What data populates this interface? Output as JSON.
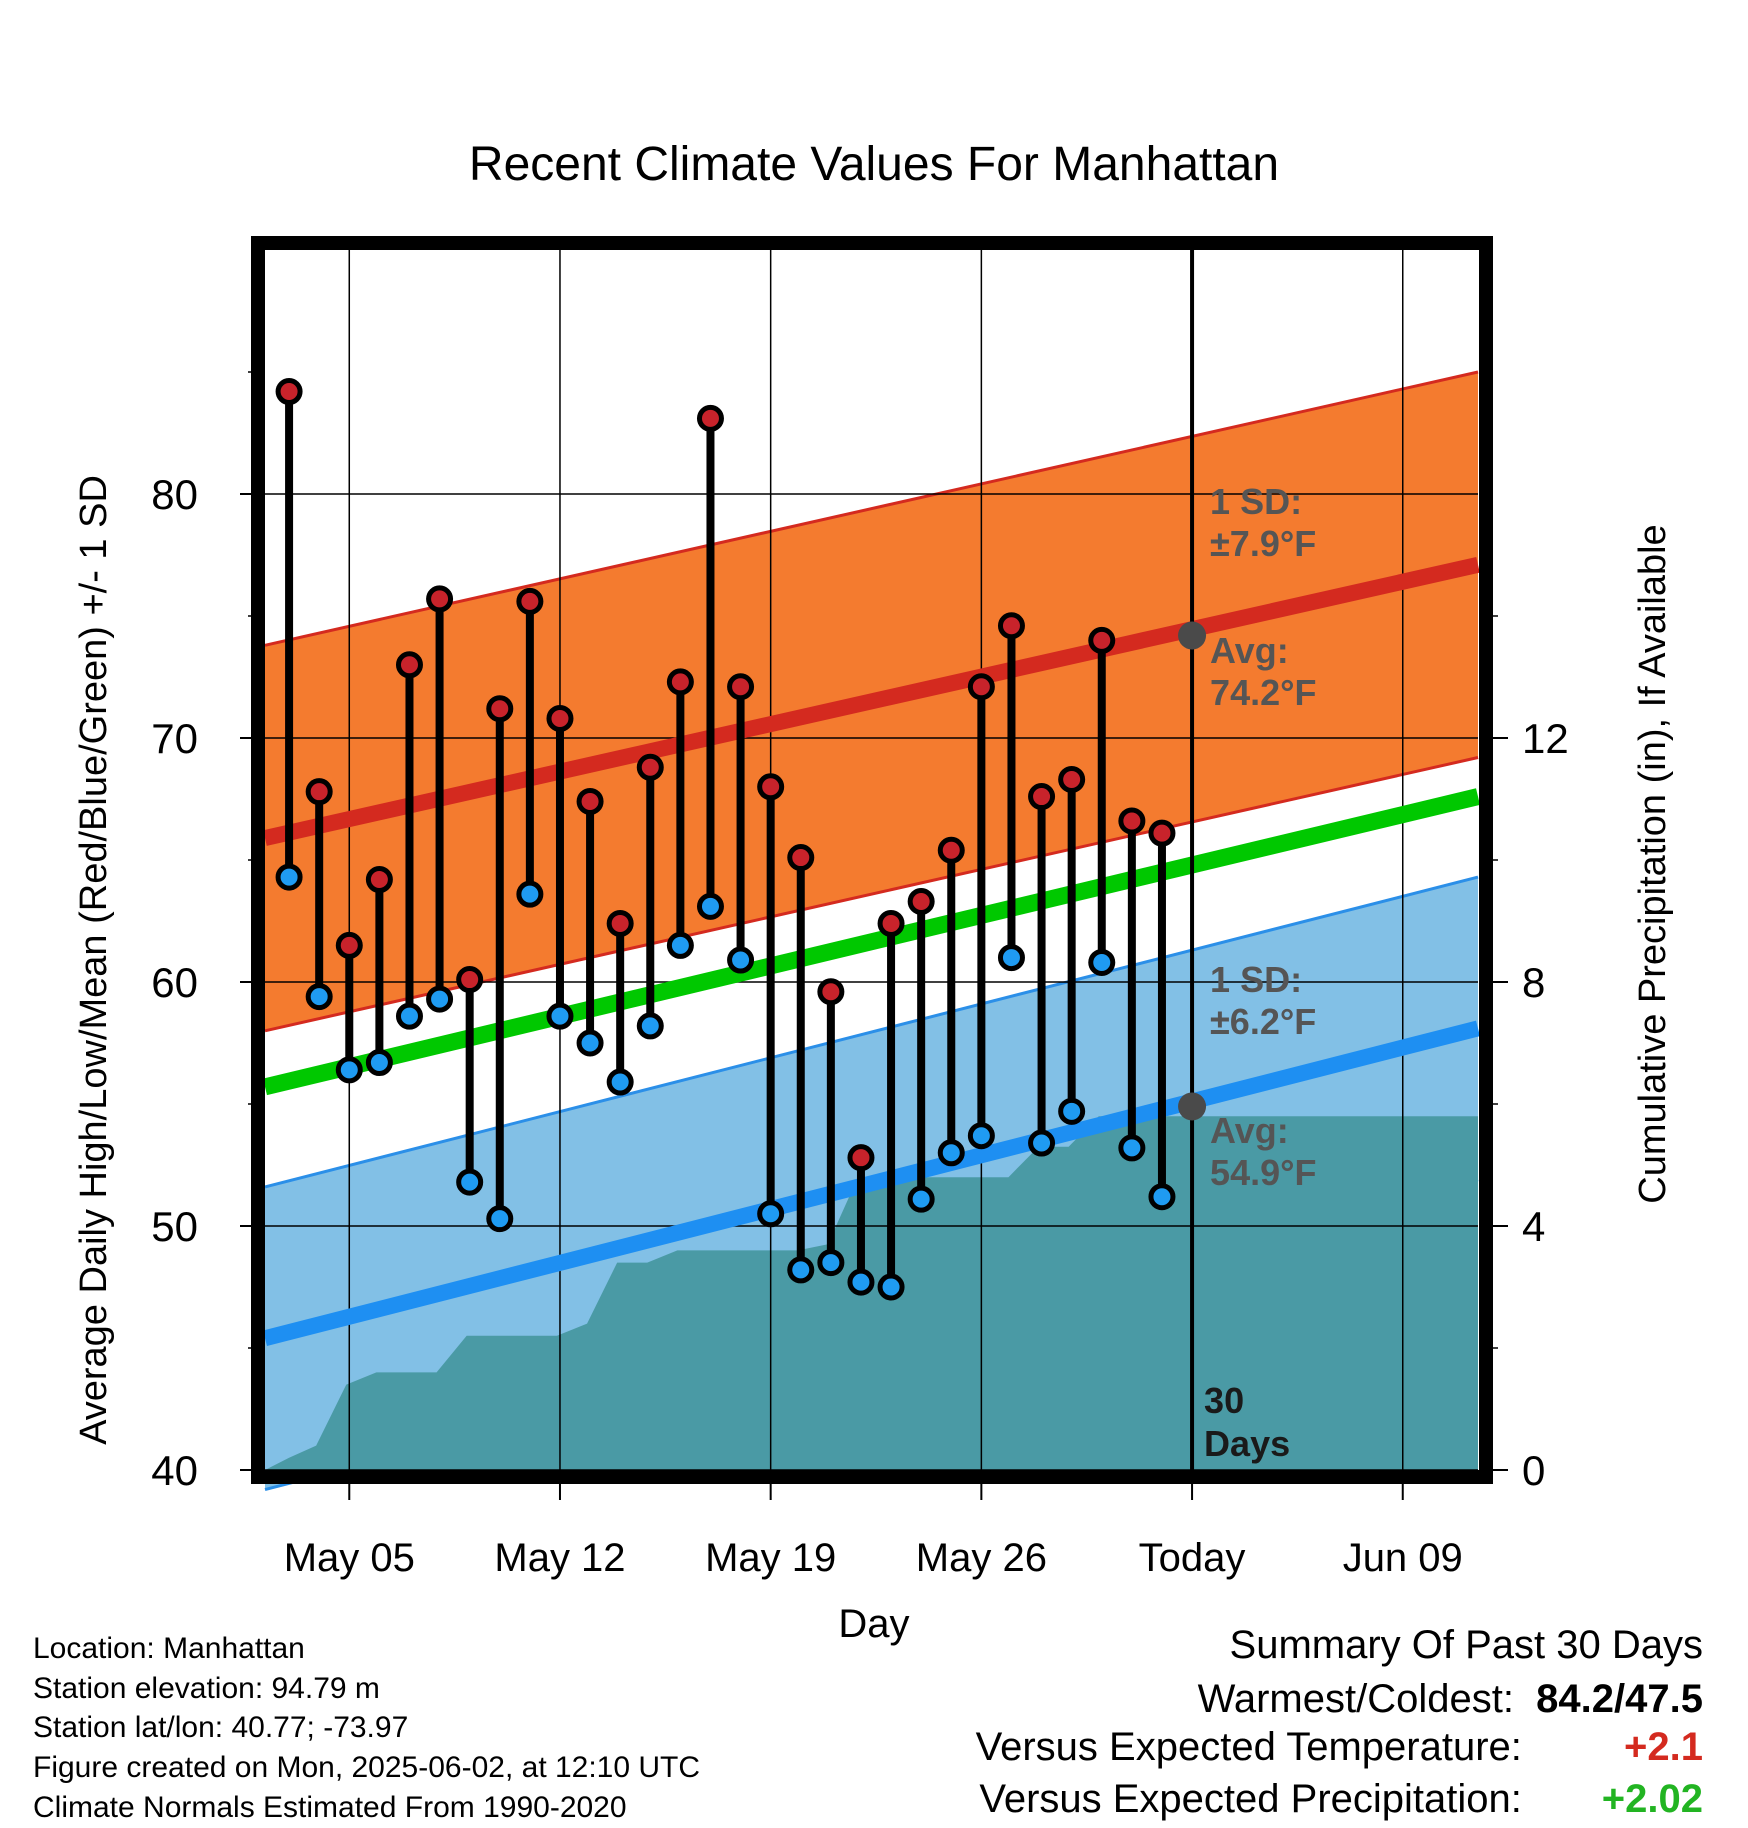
{
  "chart_data": {
    "type": "line",
    "title": "Recent Climate Values For Manhattan",
    "xlabel": "Day",
    "ylabel": "Average Daily High/Low/Mean (Red/Blue/Green) +/- 1 SD",
    "y2label": "Cumulative Precipitation (in), If Available",
    "ylim": [
      40,
      90
    ],
    "y2lim": [
      0,
      20
    ],
    "yticks": [
      40,
      50,
      60,
      70,
      80
    ],
    "y2ticks": [
      0,
      4,
      8,
      12
    ],
    "x_tick_labels": [
      "May 05",
      "May 12",
      "May 19",
      "May 26",
      "Today",
      "Jun 09"
    ],
    "x_tick_days": [
      3,
      10,
      17,
      24,
      31,
      38
    ],
    "xlim": [
      0.2,
      40.5
    ],
    "today_day": 31,
    "dates": [
      "May 03",
      "May 04",
      "May 05",
      "May 06",
      "May 07",
      "May 08",
      "May 09",
      "May 10",
      "May 11",
      "May 12",
      "May 13",
      "May 14",
      "May 15",
      "May 16",
      "May 17",
      "May 18",
      "May 19",
      "May 20",
      "May 21",
      "May 22",
      "May 23",
      "May 24",
      "May 25",
      "May 26",
      "May 27",
      "May 28",
      "May 29",
      "May 30",
      "May 31",
      "Jun 01"
    ],
    "days": [
      1,
      2,
      3,
      4,
      5,
      6,
      7,
      8,
      9,
      10,
      11,
      12,
      13,
      14,
      15,
      16,
      17,
      18,
      19,
      20,
      21,
      22,
      23,
      24,
      25,
      26,
      27,
      28,
      29,
      30
    ],
    "highs": [
      84.2,
      67.8,
      61.5,
      64.2,
      73.0,
      75.7,
      60.1,
      71.2,
      75.6,
      70.8,
      67.4,
      62.4,
      68.8,
      72.3,
      83.1,
      72.1,
      68.0,
      65.1,
      59.6,
      52.8,
      62.4,
      63.3,
      65.4,
      72.1,
      74.6,
      67.6,
      68.3,
      74.0,
      66.6,
      66.1
    ],
    "lows": [
      64.3,
      59.4,
      56.4,
      56.7,
      58.6,
      59.3,
      51.8,
      50.3,
      63.6,
      58.6,
      57.5,
      55.9,
      58.2,
      61.5,
      63.1,
      60.9,
      50.5,
      48.2,
      48.5,
      47.7,
      47.5,
      51.1,
      53.0,
      53.7,
      61.0,
      53.4,
      54.7,
      60.8,
      53.2,
      51.2
    ],
    "precip_cumulative": {
      "days": [
        0.2,
        1.0,
        1.9,
        2.9,
        3.9,
        4.9,
        5.9,
        6.9,
        7.9,
        8.9,
        9.9,
        10.9,
        11.9,
        12.9,
        13.9,
        14.9,
        15.9,
        16.9,
        17.9,
        18.9,
        19.9,
        20.9,
        21.9,
        22.9,
        23.9,
        24.9,
        25.9,
        26.9,
        27.9,
        28.9,
        29.9,
        30.9,
        40.5
      ],
      "values": [
        0.0,
        0.2,
        0.4,
        1.4,
        1.6,
        1.6,
        1.6,
        2.2,
        2.2,
        2.2,
        2.2,
        2.4,
        3.4,
        3.4,
        3.6,
        3.6,
        3.6,
        3.6,
        3.6,
        3.7,
        4.8,
        4.8,
        4.8,
        4.8,
        4.8,
        4.8,
        5.3,
        5.3,
        5.8,
        5.8,
        5.8,
        5.8,
        5.8
      ]
    },
    "normals": {
      "high_mean": [
        65.9,
        77.1
      ],
      "high_sd": 7.9,
      "low_mean": [
        45.4,
        58.1
      ],
      "low_sd": 6.2,
      "daily_mean": [
        55.7,
        67.6
      ]
    },
    "colors": {
      "high_band": "#f47b2f",
      "high_edge": "#d42a1f",
      "high_line": "#d42a1f",
      "low_band": "#82c0e6",
      "low_edge": "#2b8fe8",
      "low_line": "#1e8ff2",
      "mean_line": "#00c800",
      "precip": "#4a9aa5",
      "high_dot": "#c8232b",
      "low_dot": "#1f9bf2",
      "annotation": "#555555",
      "today_dot": "#4a4a4a"
    },
    "annotations": {
      "high_sd_label": "1 SD:",
      "high_sd_value": "±7.9°F",
      "high_avg_label": "Avg:",
      "high_avg_value": "74.2°F",
      "low_sd_label": "1 SD:",
      "low_sd_value": "±6.2°F",
      "low_avg_label": "Avg:",
      "low_avg_value": "54.9°F",
      "today_high_avg": 74.2,
      "today_low_avg": 54.9,
      "period_line1": "30",
      "period_line2": "Days"
    }
  },
  "info": {
    "location": "Location: Manhattan",
    "elevation": "Station elevation: 94.79 m",
    "latlon": "Station lat/lon: 40.77; -73.97",
    "created": "Figure created on Mon, 2025-06-02, at 12:10 UTC",
    "normals": "Climate Normals Estimated From 1990-2020"
  },
  "summary": {
    "title": "Summary Of Past 30 Days",
    "warm_cold_label": "Warmest/Coldest:",
    "warm_cold_value": "84.2/47.5",
    "temp_label": "Versus Expected Temperature:",
    "temp_value": "+2.1",
    "temp_color": "#d42a1f",
    "precip_label": "Versus Expected Precipitation:",
    "precip_value": "+2.02",
    "precip_color": "#22b422"
  }
}
